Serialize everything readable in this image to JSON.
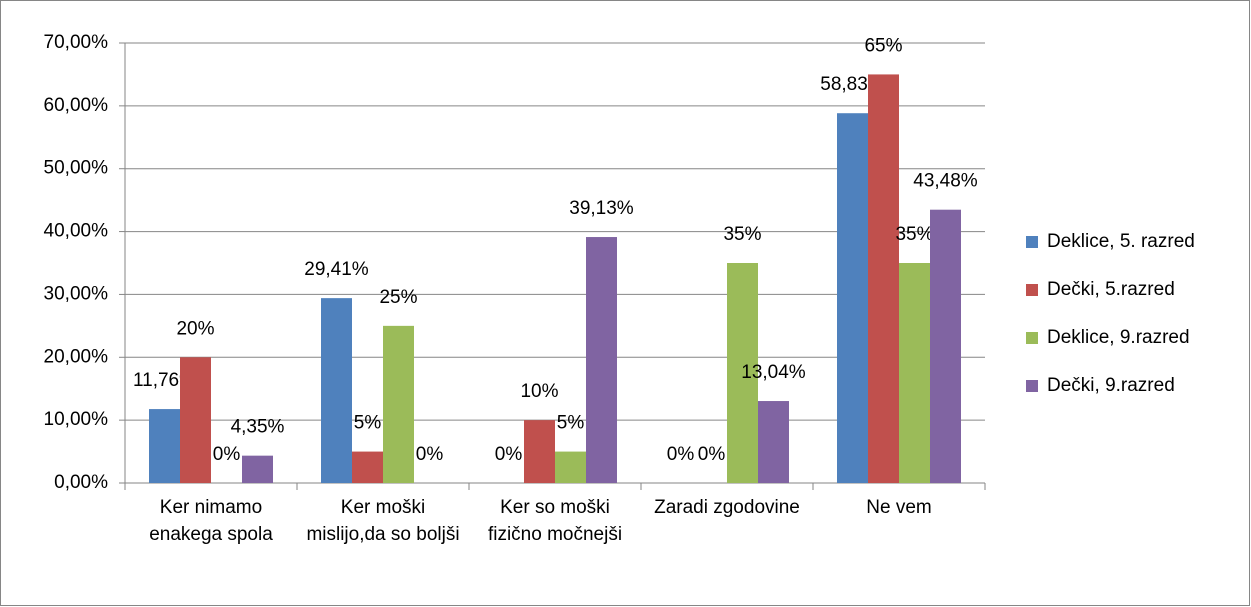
{
  "chart_data": {
    "type": "bar",
    "categories": [
      "Ker nimamo enakega spola",
      "Ker moški mislijo,da so boljši",
      "Ker so moški fizično močnejši",
      "Zaradi zgodovine",
      "Ne vem"
    ],
    "series": [
      {
        "name": "Deklice, 5. razred",
        "color": "#4f81bd",
        "values": [
          11.76,
          29.41,
          0,
          0,
          58.83
        ],
        "value_labels": [
          "11,76%",
          "29,41%",
          "0%",
          "0%",
          "58,83%"
        ]
      },
      {
        "name": "Dečki, 5.razred",
        "color": "#c0504d",
        "values": [
          20,
          5,
          10,
          0,
          65
        ],
        "value_labels": [
          "20%",
          "5%",
          "10%",
          "0%",
          "65%"
        ]
      },
      {
        "name": "Deklice, 9.razred",
        "color": "#9bbb59",
        "values": [
          0,
          25,
          5,
          35,
          35
        ],
        "value_labels": [
          "0%",
          "25%",
          "5%",
          "35%",
          "35%"
        ]
      },
      {
        "name": "Dečki, 9.razred",
        "color": "#8064a2",
        "values": [
          4.35,
          0,
          39.13,
          13.04,
          43.48
        ],
        "value_labels": [
          "4,35%",
          "0%",
          "39,13%",
          "13,04%",
          "43,48%"
        ]
      }
    ],
    "ylim": [
      0,
      70
    ],
    "yticks": [
      {
        "value": 0,
        "label": "0,00%"
      },
      {
        "value": 10,
        "label": "10,00%"
      },
      {
        "value": 20,
        "label": "20,00%"
      },
      {
        "value": 30,
        "label": "30,00%"
      },
      {
        "value": 40,
        "label": "40,00%"
      },
      {
        "value": 50,
        "label": "50,00%"
      },
      {
        "value": 60,
        "label": "60,00%"
      },
      {
        "value": 70,
        "label": "70,00%"
      }
    ],
    "grid": true,
    "legend": "right"
  }
}
